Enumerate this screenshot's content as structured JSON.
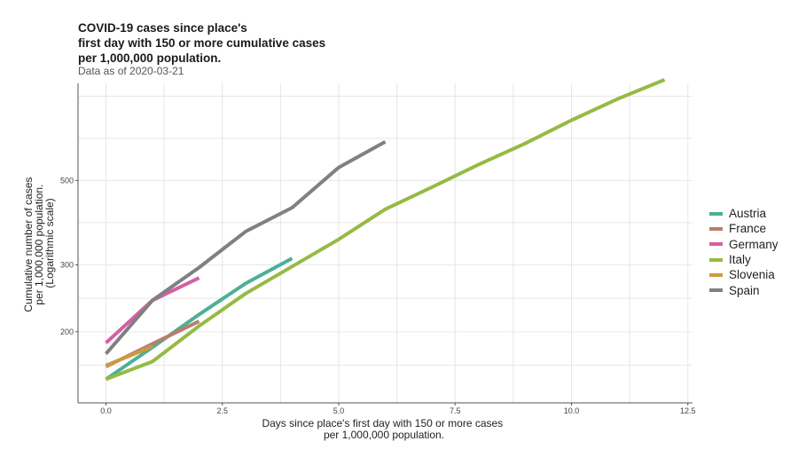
{
  "header": {
    "title_lines": [
      "COVID-19 cases since place's",
      "first day with 150 or more cumulative cases",
      "per 1,000,000 population."
    ],
    "subtitle": "Data as of 2020-03-21"
  },
  "chart_data": {
    "type": "line",
    "xlabel_lines": [
      "Days since place's first day with 150 or more cases",
      "per 1,000,000 population."
    ],
    "ylabel_lines": [
      "Cumulative number of cases",
      "per 1,000,000 population.",
      "(Logarithmic scale)"
    ],
    "xlim": [
      -0.6,
      12.6
    ],
    "ylim": [
      130,
      900
    ],
    "yscale": "log",
    "x_ticks": [
      0.0,
      2.5,
      5.0,
      7.5,
      10.0,
      12.5
    ],
    "x_tick_labels": [
      "0.0",
      "2.5",
      "5.0",
      "7.5",
      "10.0",
      "12.5"
    ],
    "y_ticks": [
      200,
      300,
      500
    ],
    "y_tick_labels": [
      "200",
      "300",
      "500"
    ],
    "grid": true,
    "legend_position": "right",
    "series": [
      {
        "name": "Austria",
        "color": "#4daf96",
        "x": [
          0,
          1,
          2,
          3,
          4
        ],
        "y": [
          150,
          182,
          222,
          268,
          312
        ]
      },
      {
        "name": "France",
        "color": "#b87d6e",
        "x": [
          0,
          1,
          2
        ],
        "y": [
          162,
          186,
          213
        ]
      },
      {
        "name": "Germany",
        "color": "#d65fa4",
        "x": [
          0,
          1,
          2
        ],
        "y": [
          187,
          242,
          277
        ]
      },
      {
        "name": "Italy",
        "color": "#96ba43",
        "x": [
          0,
          1,
          2,
          3,
          4,
          5,
          6,
          7,
          8,
          9,
          10,
          11,
          12
        ],
        "y": [
          150,
          167,
          207,
          252,
          297,
          350,
          420,
          480,
          550,
          625,
          720,
          820,
          920
        ]
      },
      {
        "name": "Slovenia",
        "color": "#cb9b40",
        "x": [
          0,
          1
        ],
        "y": [
          163,
          183
        ]
      },
      {
        "name": "Spain",
        "color": "#808080",
        "x": [
          0,
          1,
          2,
          3,
          4,
          5,
          6
        ],
        "y": [
          175,
          242,
          295,
          367,
          424,
          541,
          632
        ]
      }
    ]
  }
}
